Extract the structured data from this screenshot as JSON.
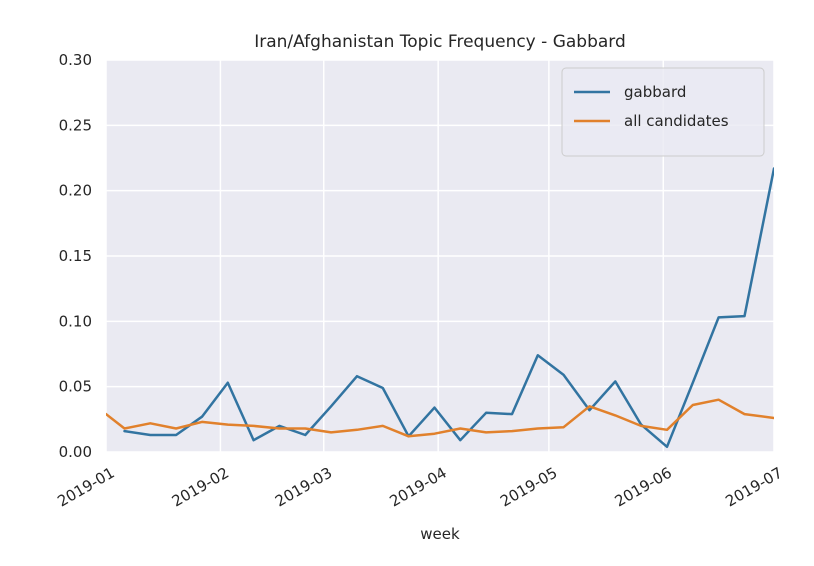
{
  "chart_data": {
    "type": "line",
    "title": "Iran/Afghanistan Topic Frequency - Gabbard",
    "xlabel": "week",
    "ylabel": "",
    "x_axis_type": "date",
    "xlim": [
      "2019-01-01",
      "2019-07-01"
    ],
    "ylim": [
      0,
      0.3
    ],
    "yticks": [
      0.0,
      0.05,
      0.1,
      0.15,
      0.2,
      0.25,
      0.3
    ],
    "ytick_labels": [
      "0.00",
      "0.05",
      "0.10",
      "0.15",
      "0.20",
      "0.25",
      "0.30"
    ],
    "xticks": [
      "2019-01-01",
      "2019-02-01",
      "2019-03-01",
      "2019-04-01",
      "2019-05-01",
      "2019-06-01",
      "2019-07-01"
    ],
    "xtick_labels": [
      "2019-01",
      "2019-02",
      "2019-03",
      "2019-04",
      "2019-05",
      "2019-06",
      "2019-07"
    ],
    "grid": true,
    "background": "#eaeaf2",
    "legend_position": "top-right",
    "series": [
      {
        "name": "gabbard",
        "color": "#3274a1",
        "points": [
          [
            "2019-01-06",
            0.016
          ],
          [
            "2019-01-13",
            0.013
          ],
          [
            "2019-01-20",
            0.013
          ],
          [
            "2019-01-27",
            0.027
          ],
          [
            "2019-02-03",
            0.053
          ],
          [
            "2019-02-10",
            0.009
          ],
          [
            "2019-02-17",
            0.02
          ],
          [
            "2019-02-24",
            0.013
          ],
          [
            "2019-03-03",
            0.035
          ],
          [
            "2019-03-10",
            0.058
          ],
          [
            "2019-03-17",
            0.049
          ],
          [
            "2019-03-24",
            0.012
          ],
          [
            "2019-03-31",
            0.034
          ],
          [
            "2019-04-07",
            0.009
          ],
          [
            "2019-04-14",
            0.03
          ],
          [
            "2019-04-21",
            0.029
          ],
          [
            "2019-04-28",
            0.074
          ],
          [
            "2019-05-05",
            0.059
          ],
          [
            "2019-05-12",
            0.032
          ],
          [
            "2019-05-19",
            0.054
          ],
          [
            "2019-05-26",
            0.021
          ],
          [
            "2019-06-02",
            0.004
          ],
          [
            "2019-06-09",
            0.053
          ],
          [
            "2019-06-16",
            0.103
          ],
          [
            "2019-06-23",
            0.104
          ],
          [
            "2019-07-01",
            0.217
          ]
        ]
      },
      {
        "name": "all candidates",
        "color": "#e1812c",
        "points": [
          [
            "2019-01-01",
            0.029
          ],
          [
            "2019-01-06",
            0.018
          ],
          [
            "2019-01-13",
            0.022
          ],
          [
            "2019-01-20",
            0.018
          ],
          [
            "2019-01-27",
            0.023
          ],
          [
            "2019-02-03",
            0.021
          ],
          [
            "2019-02-10",
            0.02
          ],
          [
            "2019-02-17",
            0.018
          ],
          [
            "2019-02-24",
            0.018
          ],
          [
            "2019-03-03",
            0.015
          ],
          [
            "2019-03-10",
            0.017
          ],
          [
            "2019-03-17",
            0.02
          ],
          [
            "2019-03-24",
            0.012
          ],
          [
            "2019-03-31",
            0.014
          ],
          [
            "2019-04-07",
            0.018
          ],
          [
            "2019-04-14",
            0.015
          ],
          [
            "2019-04-21",
            0.016
          ],
          [
            "2019-04-28",
            0.018
          ],
          [
            "2019-05-05",
            0.019
          ],
          [
            "2019-05-12",
            0.035
          ],
          [
            "2019-05-19",
            0.028
          ],
          [
            "2019-05-26",
            0.02
          ],
          [
            "2019-06-02",
            0.017
          ],
          [
            "2019-06-09",
            0.036
          ],
          [
            "2019-06-16",
            0.04
          ],
          [
            "2019-06-23",
            0.029
          ],
          [
            "2019-07-01",
            0.026
          ]
        ]
      }
    ]
  }
}
